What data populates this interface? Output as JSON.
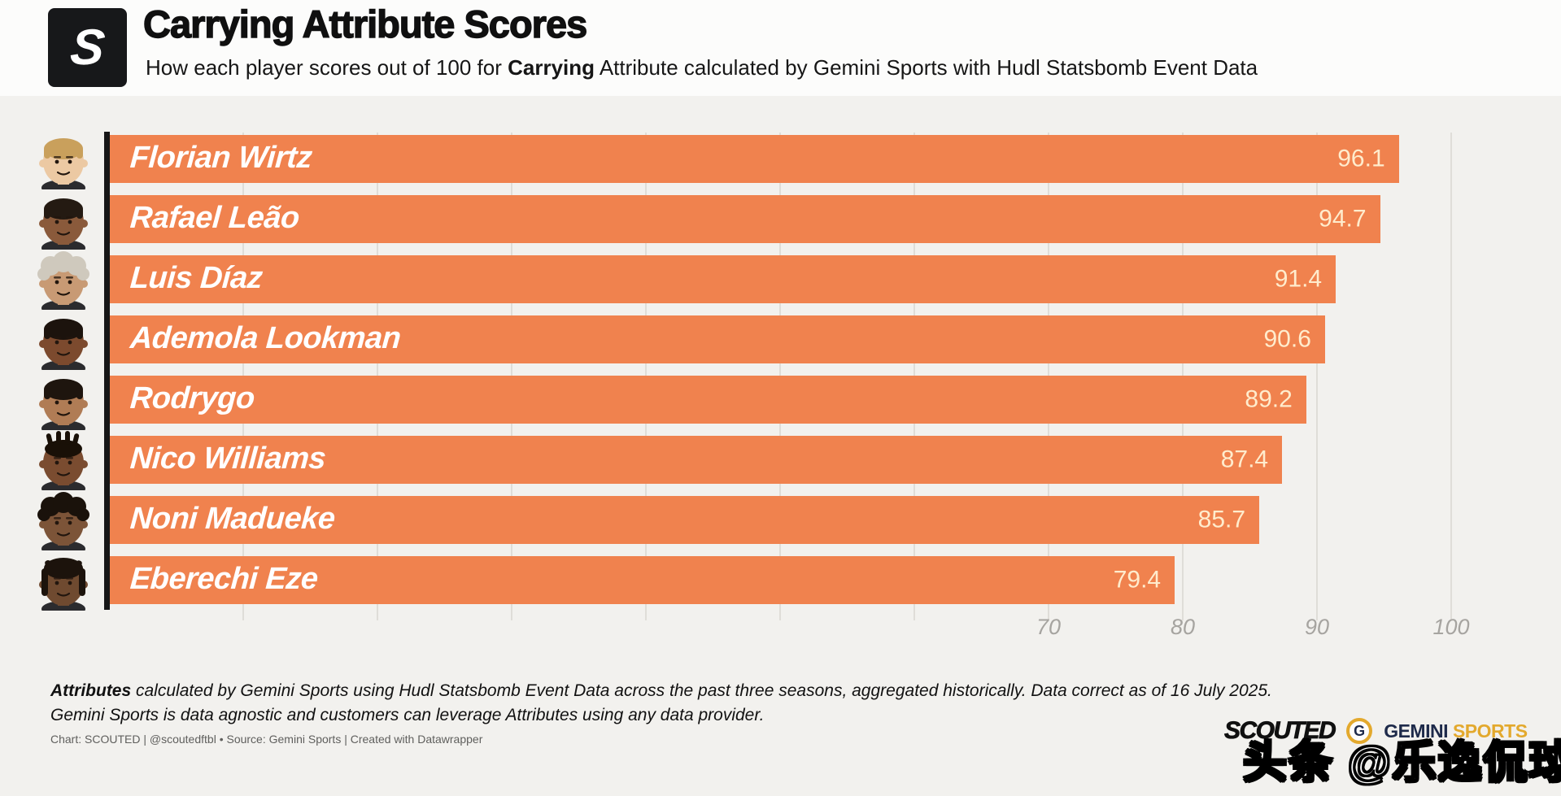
{
  "header": {
    "logo_letter": "S",
    "title": "Carrying Attribute Scores",
    "subtitle_prefix": "How each player scores out of 100 for ",
    "subtitle_bold": "Carrying",
    "subtitle_suffix": " Attribute calculated by Gemini Sports with Hudl Statsbomb Event Data"
  },
  "chart_data": {
    "type": "bar",
    "orientation": "horizontal",
    "title": "Carrying Attribute Scores",
    "xlabel": "",
    "ylabel": "",
    "categories": [
      "Florian Wirtz",
      "Rafael Leão",
      "Luis Díaz",
      "Ademola Lookman",
      "Rodrygo",
      "Nico Williams",
      "Noni Madueke",
      "Eberechi Eze"
    ],
    "values": [
      96.1,
      94.7,
      91.4,
      90.6,
      89.2,
      87.4,
      85.7,
      79.4
    ],
    "value_labels": [
      "96.1",
      "94.7",
      "91.4",
      "90.6",
      "89.2",
      "87.4",
      "85.7",
      "79.4"
    ],
    "xlim": [
      0,
      100
    ],
    "axis_ticks": [
      70,
      80,
      90,
      100
    ],
    "gridline_step": 10,
    "grid": true,
    "legend": false,
    "bar_color": "#f0824e",
    "players": [
      {
        "name": "Florian Wirtz",
        "value": 96.1,
        "label": "96.1",
        "skin": "#ecc9a3",
        "hair": "#c9a05c",
        "hair_style": "short"
      },
      {
        "name": "Rafael Leão",
        "value": 94.7,
        "label": "94.7",
        "skin": "#8a5a3b",
        "hair": "#241a12",
        "hair_style": "short"
      },
      {
        "name": "Luis Díaz",
        "value": 91.4,
        "label": "91.4",
        "skin": "#c89a74",
        "hair": "#cfc9bd",
        "hair_style": "curly"
      },
      {
        "name": "Ademola Lookman",
        "value": 90.6,
        "label": "90.6",
        "skin": "#7c4a2e",
        "hair": "#1c130d",
        "hair_style": "short"
      },
      {
        "name": "Rodrygo",
        "value": 89.2,
        "label": "89.2",
        "skin": "#b07c55",
        "hair": "#1e150e",
        "hair_style": "short"
      },
      {
        "name": "Nico Williams",
        "value": 87.4,
        "label": "87.4",
        "skin": "#7a4c30",
        "hair": "#191007",
        "hair_style": "braids"
      },
      {
        "name": "Noni Madueke",
        "value": 85.7,
        "label": "85.7",
        "skin": "#7c5438",
        "hair": "#1a120b",
        "hair_style": "curly"
      },
      {
        "name": "Eberechi Eze",
        "value": 79.4,
        "label": "79.4",
        "skin": "#6f4a30",
        "hair": "#1c130c",
        "hair_style": "dreads"
      }
    ]
  },
  "footnote": {
    "line1_bold": "Attributes",
    "line1_rest": " calculated by Gemini Sports using Hudl Statsbomb Event Data across the past three seasons, aggregated historically. Data correct as of 16 July 2025.",
    "line2": "Gemini Sports is data agnostic and customers can leverage Attributes using any data provider."
  },
  "credit": "Chart: SCOUTED | @scoutedftbl • Source: Gemini Sports | Created with Datawrapper",
  "branding": {
    "scouted": "SCOUTED",
    "gemini_letter": "G",
    "gemini_word": "GEMINI",
    "sports_word": "SPORTS",
    "gemini_navy": "#1e2a4a",
    "gemini_gold": "#e3a92d"
  },
  "watermark": "头条 @乐逸侃球",
  "colors": {
    "background": "#f2f1ee",
    "header_background": "#fcfcfb",
    "bar": "#f0824e",
    "bar_name_text": "#ffffff",
    "bar_value_text": "#ffeccd",
    "axis_line": "#161616",
    "gridline": "#dfddd8",
    "tick_text": "#a6a4a0"
  }
}
